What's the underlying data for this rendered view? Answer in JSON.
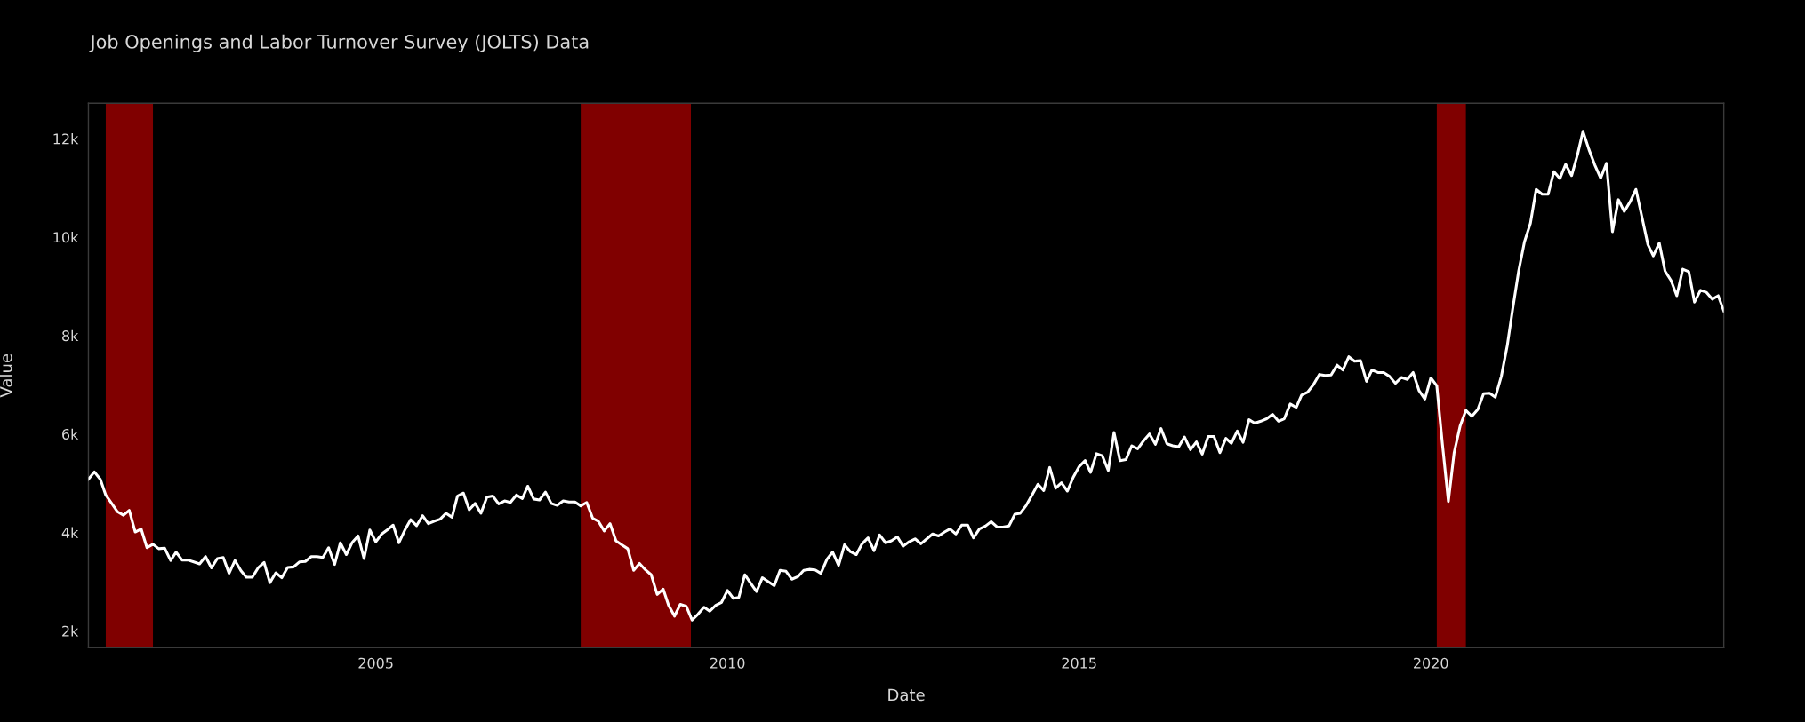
{
  "chart_data": {
    "type": "line",
    "title": "Job Openings and Labor Turnover Survey (JOLTS) Data",
    "xlabel": "Date",
    "ylabel": "Value",
    "x": [
      "2000-12",
      "2001-01",
      "2001-02",
      "2001-03",
      "2001-04",
      "2001-05",
      "2001-06",
      "2001-07",
      "2001-08",
      "2001-09",
      "2001-10",
      "2001-11",
      "2001-12",
      "2002-01",
      "2002-02",
      "2002-03",
      "2002-04",
      "2002-05",
      "2002-06",
      "2002-07",
      "2002-08",
      "2002-09",
      "2002-10",
      "2002-11",
      "2002-12",
      "2003-01",
      "2003-02",
      "2003-03",
      "2003-04",
      "2003-05",
      "2003-06",
      "2003-07",
      "2003-08",
      "2003-09",
      "2003-10",
      "2003-11",
      "2003-12",
      "2004-01",
      "2004-02",
      "2004-03",
      "2004-04",
      "2004-05",
      "2004-06",
      "2004-07",
      "2004-08",
      "2004-09",
      "2004-10",
      "2004-11",
      "2004-12",
      "2005-01",
      "2005-02",
      "2005-03",
      "2005-04",
      "2005-05",
      "2005-06",
      "2005-07",
      "2005-08",
      "2005-09",
      "2005-10",
      "2005-11",
      "2005-12",
      "2006-01",
      "2006-02",
      "2006-03",
      "2006-04",
      "2006-05",
      "2006-06",
      "2006-07",
      "2006-08",
      "2006-09",
      "2006-10",
      "2006-11",
      "2006-12",
      "2007-01",
      "2007-02",
      "2007-03",
      "2007-04",
      "2007-05",
      "2007-06",
      "2007-07",
      "2007-08",
      "2007-09",
      "2007-10",
      "2007-11",
      "2007-12",
      "2008-01",
      "2008-02",
      "2008-03",
      "2008-04",
      "2008-05",
      "2008-06",
      "2008-07",
      "2008-08",
      "2008-09",
      "2008-10",
      "2008-11",
      "2008-12",
      "2009-01",
      "2009-02",
      "2009-03",
      "2009-04",
      "2009-05",
      "2009-06",
      "2009-07",
      "2009-08",
      "2009-09",
      "2009-10",
      "2009-11",
      "2009-12",
      "2010-01",
      "2010-02",
      "2010-03",
      "2010-04",
      "2010-05",
      "2010-06",
      "2010-07",
      "2010-08",
      "2010-09",
      "2010-10",
      "2010-11",
      "2010-12",
      "2011-01",
      "2011-02",
      "2011-03",
      "2011-04",
      "2011-05",
      "2011-06",
      "2011-07",
      "2011-08",
      "2011-09",
      "2011-10",
      "2011-11",
      "2011-12",
      "2012-01",
      "2012-02",
      "2012-03",
      "2012-04",
      "2012-05",
      "2012-06",
      "2012-07",
      "2012-08",
      "2012-09",
      "2012-10",
      "2012-11",
      "2012-12",
      "2013-01",
      "2013-02",
      "2013-03",
      "2013-04",
      "2013-05",
      "2013-06",
      "2013-07",
      "2013-08",
      "2013-09",
      "2013-10",
      "2013-11",
      "2013-12",
      "2014-01",
      "2014-02",
      "2014-03",
      "2014-04",
      "2014-05",
      "2014-06",
      "2014-07",
      "2014-08",
      "2014-09",
      "2014-10",
      "2014-11",
      "2014-12",
      "2015-01",
      "2015-02",
      "2015-03",
      "2015-04",
      "2015-05",
      "2015-06",
      "2015-07",
      "2015-08",
      "2015-09",
      "2015-10",
      "2015-11",
      "2015-12",
      "2016-01",
      "2016-02",
      "2016-03",
      "2016-04",
      "2016-05",
      "2016-06",
      "2016-07",
      "2016-08",
      "2016-09",
      "2016-10",
      "2016-11",
      "2016-12",
      "2017-01",
      "2017-02",
      "2017-03",
      "2017-04",
      "2017-05",
      "2017-06",
      "2017-07",
      "2017-08",
      "2017-09",
      "2017-10",
      "2017-11",
      "2017-12",
      "2018-01",
      "2018-02",
      "2018-03",
      "2018-04",
      "2018-05",
      "2018-06",
      "2018-07",
      "2018-08",
      "2018-09",
      "2018-10",
      "2018-11",
      "2018-12",
      "2019-01",
      "2019-02",
      "2019-03",
      "2019-04",
      "2019-05",
      "2019-06",
      "2019-07",
      "2019-08",
      "2019-09",
      "2019-10",
      "2019-11",
      "2019-12",
      "2020-01",
      "2020-02",
      "2020-03",
      "2020-04",
      "2020-05",
      "2020-06",
      "2020-07",
      "2020-08",
      "2020-09",
      "2020-10",
      "2020-11",
      "2020-12",
      "2021-01",
      "2021-02",
      "2021-03",
      "2021-04",
      "2021-05",
      "2021-06",
      "2021-07",
      "2021-08",
      "2021-09",
      "2021-10",
      "2021-11",
      "2021-12",
      "2022-01",
      "2022-02",
      "2022-03",
      "2022-04",
      "2022-05",
      "2022-06",
      "2022-07",
      "2022-08",
      "2022-09",
      "2022-10",
      "2022-11",
      "2022-12",
      "2023-01",
      "2023-02",
      "2023-03",
      "2023-04",
      "2023-05",
      "2023-06",
      "2023-07",
      "2023-08",
      "2023-09",
      "2023-10",
      "2023-11",
      "2023-12",
      "2024-01",
      "2024-02",
      "2024-03"
    ],
    "series": [
      {
        "color": "#ffffff",
        "values": [
          5080,
          5230,
          5080,
          4760,
          4590,
          4420,
          4350,
          4450,
          4010,
          4070,
          3690,
          3760,
          3670,
          3680,
          3430,
          3600,
          3440,
          3440,
          3400,
          3360,
          3510,
          3280,
          3470,
          3490,
          3170,
          3430,
          3220,
          3090,
          3090,
          3280,
          3390,
          2980,
          3180,
          3080,
          3290,
          3300,
          3400,
          3410,
          3510,
          3510,
          3490,
          3690,
          3350,
          3790,
          3550,
          3800,
          3930,
          3470,
          4050,
          3810,
          3970,
          4050,
          4150,
          3790,
          4050,
          4260,
          4140,
          4340,
          4180,
          4230,
          4270,
          4390,
          4310,
          4740,
          4800,
          4460,
          4590,
          4390,
          4720,
          4740,
          4580,
          4640,
          4610,
          4760,
          4690,
          4940,
          4680,
          4660,
          4820,
          4590,
          4550,
          4640,
          4620,
          4620,
          4540,
          4610,
          4290,
          4230,
          4030,
          4180,
          3830,
          3750,
          3670,
          3230,
          3370,
          3240,
          3140,
          2740,
          2850,
          2520,
          2300,
          2540,
          2500,
          2220,
          2340,
          2480,
          2400,
          2520,
          2580,
          2820,
          2660,
          2680,
          3140,
          2970,
          2800,
          3080,
          3000,
          2920,
          3230,
          3210,
          3050,
          3100,
          3230,
          3250,
          3240,
          3170,
          3450,
          3600,
          3330,
          3750,
          3610,
          3550,
          3770,
          3890,
          3630,
          3950,
          3790,
          3830,
          3910,
          3720,
          3810,
          3870,
          3770,
          3870,
          3970,
          3930,
          4010,
          4070,
          3970,
          4150,
          4150,
          3890,
          4070,
          4130,
          4220,
          4110,
          4110,
          4130,
          4370,
          4390,
          4550,
          4760,
          4980,
          4850,
          5320,
          4900,
          5010,
          4840,
          5120,
          5340,
          5460,
          5220,
          5600,
          5560,
          5260,
          6030,
          5460,
          5480,
          5760,
          5700,
          5860,
          6000,
          5790,
          6110,
          5800,
          5760,
          5740,
          5940,
          5680,
          5840,
          5590,
          5950,
          5950,
          5620,
          5910,
          5810,
          6060,
          5830,
          6290,
          6220,
          6260,
          6310,
          6400,
          6260,
          6310,
          6610,
          6540,
          6790,
          6850,
          7000,
          7210,
          7190,
          7200,
          7400,
          7300,
          7570,
          7480,
          7490,
          7070,
          7300,
          7250,
          7250,
          7170,
          7030,
          7150,
          7110,
          7250,
          6880,
          6710,
          7140,
          6980,
          5800,
          4630,
          5620,
          6160,
          6480,
          6360,
          6500,
          6820,
          6830,
          6750,
          7170,
          7800,
          8540,
          9310,
          9900,
          10280,
          10970,
          10870,
          10870,
          11330,
          11190,
          11480,
          11250,
          11680,
          12150,
          11780,
          11470,
          11200,
          11500,
          10110,
          10760,
          10520,
          10720,
          10970,
          10410,
          9850,
          9620,
          9880,
          9310,
          9120,
          8810,
          9350,
          9300,
          8680,
          8920,
          8880,
          8740,
          8810,
          8500
        ]
      }
    ],
    "xticks": [
      {
        "value": "2005-01-01",
        "label": "2005"
      },
      {
        "value": "2010-01-01",
        "label": "2010"
      },
      {
        "value": "2015-01-01",
        "label": "2015"
      },
      {
        "value": "2020-01-01",
        "label": "2020"
      }
    ],
    "xlim": [
      "2000-12",
      "2024-03"
    ],
    "ylim": [
      1660,
      12720
    ],
    "yticks": [
      {
        "value": 2000,
        "label": "2k"
      },
      {
        "value": 4000,
        "label": "4k"
      },
      {
        "value": 6000,
        "label": "6k"
      },
      {
        "value": 8000,
        "label": "8k"
      },
      {
        "value": 10000,
        "label": "10k"
      },
      {
        "value": 12000,
        "label": "12k"
      }
    ],
    "bands": [
      {
        "axis": "x",
        "from": "2001-03",
        "to": "2001-11",
        "color": "#800000"
      },
      {
        "axis": "x",
        "from": "2007-12",
        "to": "2009-06-25",
        "color": "#800000"
      },
      {
        "axis": "x",
        "from": "2020-02",
        "to": "2020-07",
        "color": "#800000"
      }
    ],
    "grid": false,
    "legend": false,
    "marker": "none",
    "line_style": "solid"
  }
}
